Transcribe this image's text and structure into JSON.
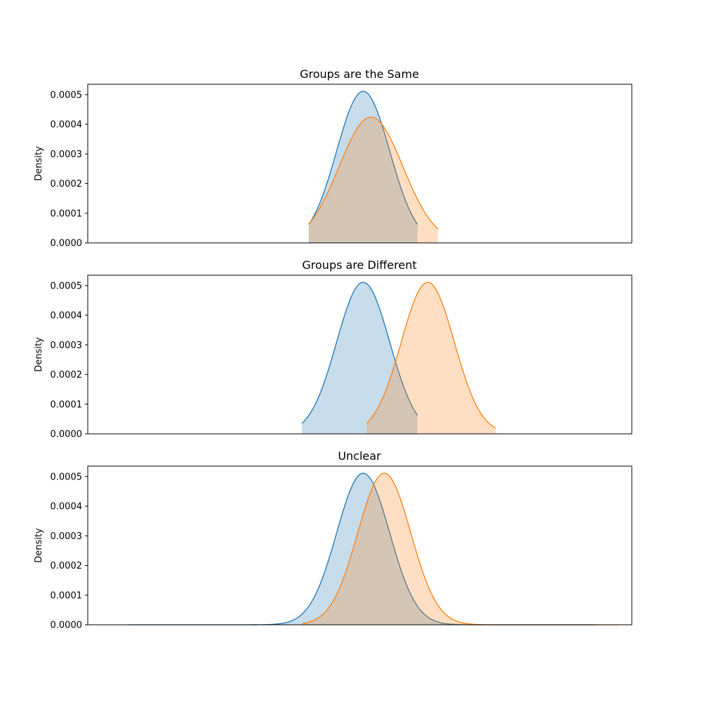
{
  "colors": {
    "series_a": "#1f77b4",
    "series_b": "#ff7f0e"
  },
  "chart_data": [
    {
      "type": "area",
      "title": "Groups are the Same",
      "ylabel": "Density",
      "ylim": [
        0,
        0.000535
      ],
      "xlim": [
        -8000,
        8000
      ],
      "yticks": [
        "0.0000",
        "0.0001",
        "0.0002",
        "0.0003",
        "0.0004",
        "0.0005"
      ],
      "series": [
        {
          "mean": 100,
          "sd": 780,
          "peak": 0.000511,
          "tail_low": -1500,
          "tail_high": 1700
        },
        {
          "mean": 330,
          "sd": 940,
          "peak": 0.000424,
          "tail_low": -1500,
          "tail_high": 2300
        }
      ]
    },
    {
      "type": "area",
      "title": "Groups are Different",
      "ylabel": "Density",
      "ylim": [
        0,
        0.000535
      ],
      "xlim": [
        -8000,
        8000
      ],
      "yticks": [
        "0.0000",
        "0.0001",
        "0.0002",
        "0.0003",
        "0.0004",
        "0.0005"
      ],
      "series": [
        {
          "mean": 100,
          "sd": 780,
          "peak": 0.000511,
          "tail_low": -1700,
          "tail_high": 1700
        },
        {
          "mean": 2000,
          "sd": 780,
          "peak": 0.000511,
          "tail_low": 200,
          "tail_high": 4000
        }
      ]
    },
    {
      "type": "area",
      "title": "Unclear",
      "ylabel": "Density",
      "ylim": [
        0,
        0.000535
      ],
      "xlim": [
        -8000,
        8000
      ],
      "yticks": [
        "0.0000",
        "0.0001",
        "0.0002",
        "0.0003",
        "0.0004",
        "0.0005"
      ],
      "series": [
        {
          "mean": 100,
          "sd": 780,
          "peak": 0.000511,
          "tail_low": -6800,
          "tail_high": 6900
        },
        {
          "mean": 720,
          "sd": 780,
          "peak": 0.000511,
          "tail_low": -1700,
          "tail_high": 7600
        }
      ]
    }
  ]
}
